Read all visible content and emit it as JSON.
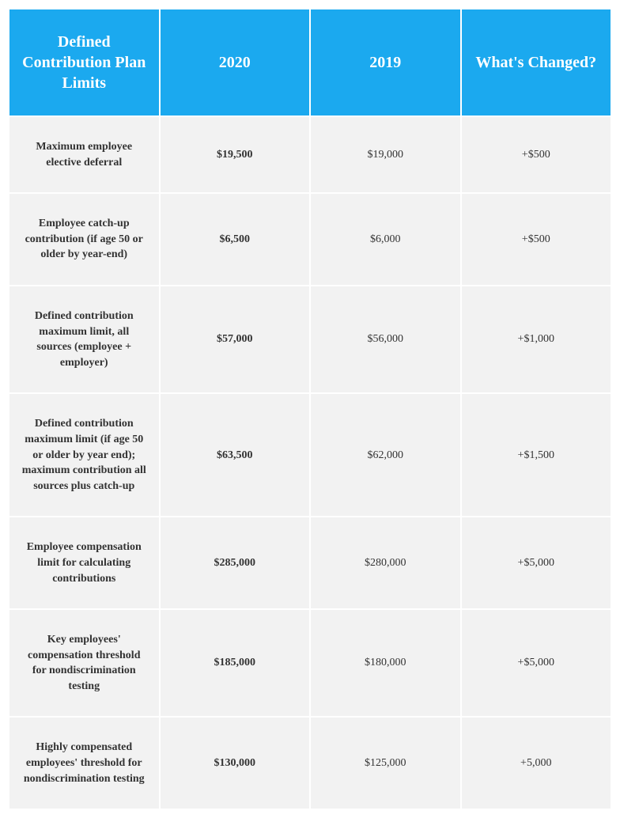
{
  "table": {
    "header_bg": "#1ba9ef",
    "header_color": "#ffffff",
    "cell_bg": "#f2f2f2",
    "cell_color": "#333333",
    "header_fontsize": 20,
    "cell_fontsize": 14,
    "columns": [
      "Defined Contribution Plan Limits",
      "2020",
      "2019",
      "What's Changed?"
    ],
    "rows": [
      {
        "label": "Maximum employee elective deferral",
        "y2020": "$19,500",
        "y2019": "$19,000",
        "change": "+$500"
      },
      {
        "label": "Employee catch-up contribution (if age 50 or older by year-end)",
        "y2020": "$6,500",
        "y2019": "$6,000",
        "change": "+$500"
      },
      {
        "label": "Defined contribution maximum limit, all sources (employee + employer)",
        "y2020": "$57,000",
        "y2019": "$56,000",
        "change": "+$1,000"
      },
      {
        "label": "Defined contribution maximum limit (if age 50 or older by year end); maximum contribution all sources plus catch-up",
        "y2020": "$63,500",
        "y2019": "$62,000",
        "change": "+$1,500"
      },
      {
        "label": "Employee compensation limit for calculating contributions",
        "y2020": "$285,000",
        "y2019": "$280,000",
        "change": "+$5,000"
      },
      {
        "label": "Key employees' compensation threshold for nondiscrimination testing",
        "y2020": "$185,000",
        "y2019": "$180,000",
        "change": "+$5,000"
      },
      {
        "label": "Highly compensated employees' threshold for nondiscrimination testing",
        "y2020": "$130,000",
        "y2019": "$125,000",
        "change": "+5,000"
      }
    ]
  }
}
